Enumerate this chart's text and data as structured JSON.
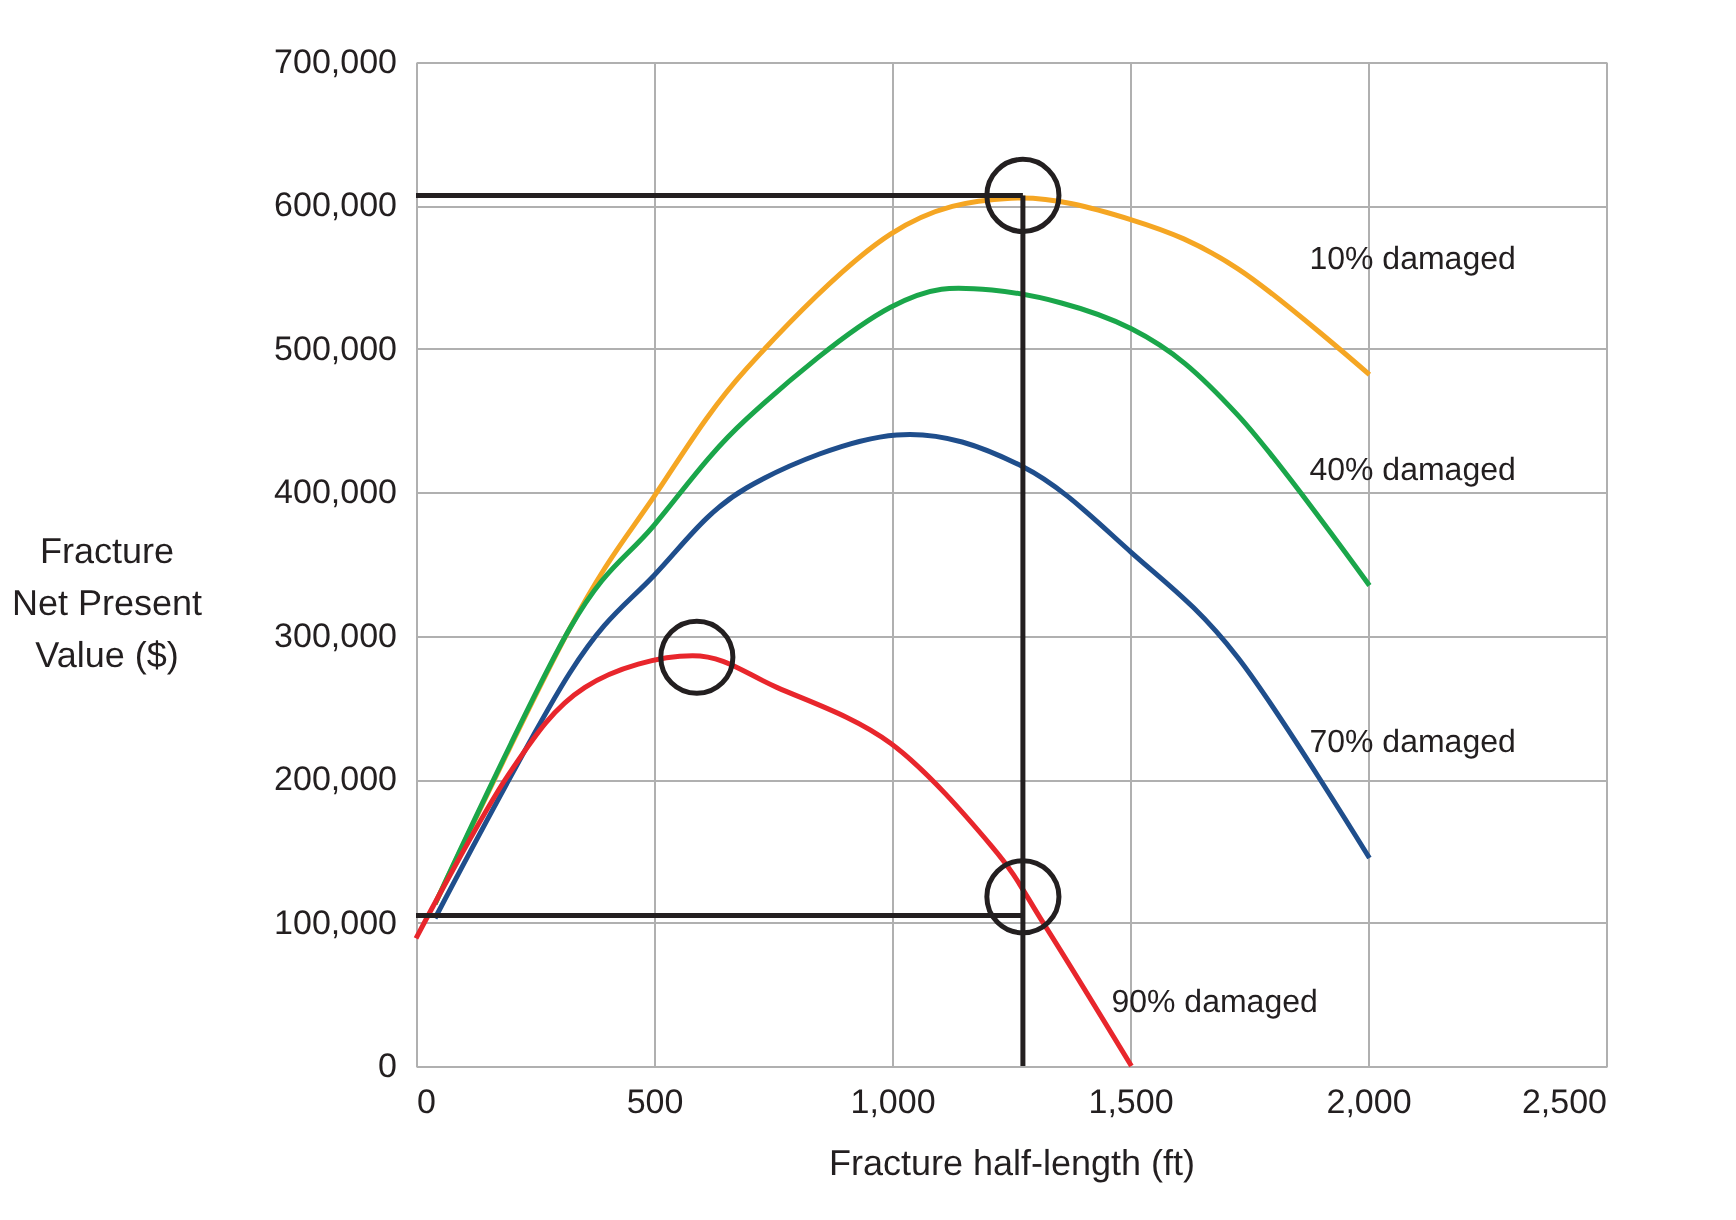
{
  "chart_data": {
    "type": "line",
    "xlabel": "Fracture half-length (ft)",
    "ylabel": "Fracture\nNet Present\nValue ($)",
    "xlim": [
      0,
      2500
    ],
    "xticks": [
      0,
      500,
      {
        "value": 1000,
        "label": "1,000"
      },
      {
        "value": 1500,
        "label": "1,500"
      },
      {
        "value": 2000,
        "label": "2,000"
      },
      {
        "value": 2500,
        "label": "2,500"
      }
    ],
    "ylim": [
      0,
      700000
    ],
    "yticks": [
      0,
      {
        "value": 100000,
        "label": "100,000"
      },
      {
        "value": 200000,
        "label": "200,000"
      },
      {
        "value": 300000,
        "label": "300,000"
      },
      {
        "value": 400000,
        "label": "400,000"
      },
      {
        "value": 500000,
        "label": "500,000"
      },
      {
        "value": 600000,
        "label": "600,000"
      },
      {
        "value": 700000,
        "label": "700,000"
      }
    ],
    "grid": true,
    "series": [
      {
        "name": "10% damaged",
        "color": "#f5a623",
        "x": [
          40,
          323,
          500,
          694,
          997,
          1250,
          1503,
          1726,
          2003
        ],
        "values": [
          113000,
          305000,
          397000,
          486000,
          580000,
          605000,
          590000,
          556000,
          482000
        ]
      },
      {
        "name": "40% damaged",
        "color": "#1aa64a",
        "x": [
          40,
          323,
          500,
          694,
          997,
          1210,
          1503,
          1726,
          2003
        ],
        "values": [
          113000,
          305000,
          377000,
          451000,
          529000,
          541000,
          514000,
          454000,
          335000
        ]
      },
      {
        "name": "70% damaged",
        "color": "#1f4e8c",
        "x": [
          40,
          323,
          500,
          694,
          1010,
          1274,
          1503,
          1726,
          2003
        ],
        "values": [
          103000,
          274000,
          342000,
          403000,
          440000,
          418000,
          358000,
          285000,
          145000
        ]
      },
      {
        "name": "90% damaged",
        "color": "#e8262c",
        "x": [
          0,
          194,
          355,
          581,
          758,
          997,
          1210,
          1323,
          1503
        ],
        "values": [
          89000,
          203000,
          264000,
          286000,
          264000,
          225000,
          153000,
          97000,
          0
        ]
      },
      {
        "color": "#231f20",
        "x": [
          0,
          1275
        ],
        "values": [
          607000,
          607000
        ]
      },
      {
        "color": "#231f20",
        "x": [
          1275,
          1275
        ],
        "values": [
          0,
          607000
        ]
      },
      {
        "color": "#231f20",
        "x": [
          0,
          1275
        ],
        "values": [
          105000,
          105000
        ]
      },
      {
        "type": "scatter",
        "marker": "circle",
        "color": "#231f20",
        "x": [
          1275,
          1275,
          590
        ],
        "values": [
          607000,
          118000,
          285000
        ]
      }
    ]
  }
}
